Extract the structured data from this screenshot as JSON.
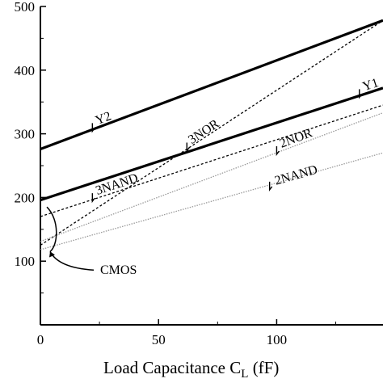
{
  "chart_data": {
    "type": "line",
    "xlabel": "Load Capacitance",
    "xlabel_symbol": "C",
    "xlabel_subscript": "L",
    "xlabel_unit": "(fF)",
    "ylabel": "",
    "xlim": [
      0,
      145
    ],
    "ylim": [
      0,
      500
    ],
    "x_ticks": [
      0,
      50,
      100
    ],
    "y_ticks": [
      100,
      200,
      300,
      400,
      500
    ],
    "x_tick_labels": [
      "0",
      "50",
      "100"
    ],
    "y_tick_labels": [
      "100",
      "200",
      "300",
      "400",
      "500"
    ],
    "grid": false,
    "series": [
      {
        "name": "Y2",
        "style": "thick",
        "x": [
          0,
          145
        ],
        "y": [
          276,
          478
        ]
      },
      {
        "name": "Y1",
        "style": "thick",
        "x": [
          0,
          145
        ],
        "y": [
          196,
          372
        ]
      },
      {
        "name": "3NOR",
        "style": "dashed",
        "x": [
          0,
          145
        ],
        "y": [
          125,
          478
        ]
      },
      {
        "name": "3NAND",
        "style": "dashed",
        "x": [
          0,
          145
        ],
        "y": [
          170,
          345
        ]
      },
      {
        "name": "2NOR",
        "style": "dotted",
        "x": [
          0,
          145
        ],
        "y": [
          131,
          333
        ]
      },
      {
        "name": "2NAND",
        "style": "dotted",
        "x": [
          0,
          145
        ],
        "y": [
          118,
          270
        ]
      }
    ],
    "annotations": [
      {
        "text": "CMOS",
        "points_to": "low-capacitance intercept of the gate curves"
      }
    ]
  }
}
